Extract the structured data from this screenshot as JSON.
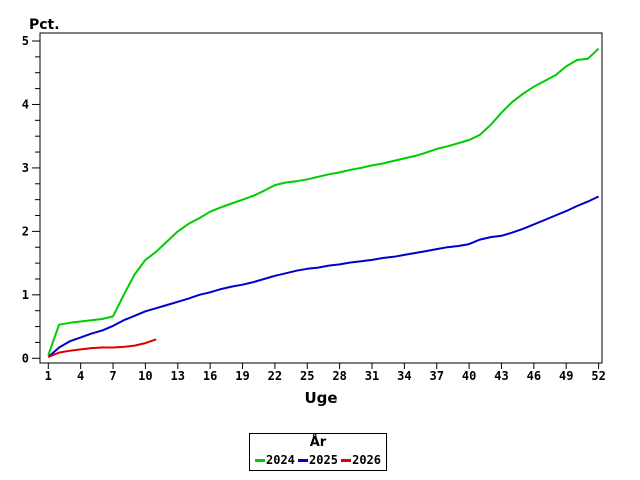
{
  "page": {
    "background_color": "#ffffff",
    "axis_color": "#000000"
  },
  "chart_data": {
    "type": "line",
    "ylabel": "Pct.",
    "xlabel": "Uge",
    "grid": "off",
    "x_axis": {
      "min": 1,
      "max": 52,
      "ticks": [
        1,
        4,
        7,
        10,
        13,
        16,
        19,
        22,
        25,
        28,
        31,
        34,
        37,
        40,
        43,
        46,
        49,
        52
      ]
    },
    "y_axis": {
      "min": 0,
      "max": 5,
      "major_step": 1,
      "minor_step": 0.25,
      "major_ticks": [
        0,
        1,
        2,
        3,
        4,
        5
      ]
    },
    "legend": {
      "title": "År",
      "position": "bottom-center"
    },
    "series": [
      {
        "name": "2024",
        "color": "#00CC00",
        "start_week": 1,
        "values": [
          0.05,
          0.53,
          0.56,
          0.58,
          0.6,
          0.62,
          0.66,
          1.0,
          1.32,
          1.55,
          1.68,
          1.84,
          2.0,
          2.12,
          2.21,
          2.31,
          2.38,
          2.44,
          2.5,
          2.56,
          2.64,
          2.73,
          2.77,
          2.79,
          2.82,
          2.86,
          2.9,
          2.93,
          2.97,
          3.0,
          3.04,
          3.07,
          3.11,
          3.15,
          3.19,
          3.24,
          3.3,
          3.34,
          3.39,
          3.44,
          3.52,
          3.68,
          3.87,
          4.04,
          4.17,
          4.28,
          4.37,
          4.46,
          4.6,
          4.7,
          4.72,
          4.88
        ]
      },
      {
        "name": "2025",
        "color": "#0000CC",
        "start_week": 1,
        "values": [
          0.02,
          0.17,
          0.27,
          0.33,
          0.39,
          0.44,
          0.51,
          0.6,
          0.67,
          0.74,
          0.79,
          0.84,
          0.89,
          0.94,
          1.0,
          1.04,
          1.09,
          1.13,
          1.16,
          1.2,
          1.25,
          1.3,
          1.34,
          1.38,
          1.41,
          1.43,
          1.46,
          1.48,
          1.51,
          1.53,
          1.55,
          1.58,
          1.6,
          1.63,
          1.66,
          1.69,
          1.72,
          1.75,
          1.77,
          1.8,
          1.87,
          1.91,
          1.93,
          1.98,
          2.04,
          2.11,
          2.18,
          2.25,
          2.32,
          2.4,
          2.47,
          2.55
        ]
      },
      {
        "name": "2026",
        "color": "#DD0000",
        "start_week": 1,
        "values": [
          0.02,
          0.09,
          0.12,
          0.14,
          0.16,
          0.17,
          0.17,
          0.18,
          0.2,
          0.24,
          0.3
        ]
      }
    ]
  }
}
